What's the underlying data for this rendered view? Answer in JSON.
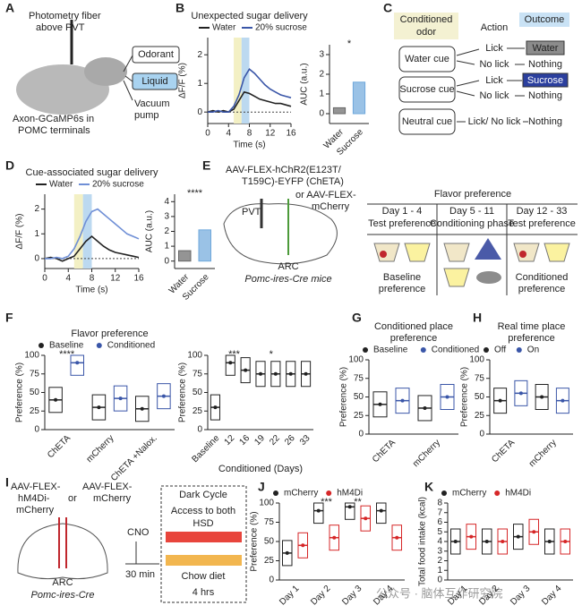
{
  "panel_labels": [
    "A",
    "B",
    "C",
    "D",
    "E",
    "F",
    "G",
    "H",
    "I",
    "J",
    "K"
  ],
  "panel_a": {
    "fiber": [
      "Photometry fiber",
      "above PVT"
    ],
    "odorant": "Odorant",
    "liquid": "Liquid",
    "pump": [
      "Vacuum",
      "pump"
    ],
    "axon": [
      "Axon-GCaMP6s in",
      "POMC terminals"
    ]
  },
  "panel_c": {
    "headers": [
      [
        "Conditioned",
        "odor"
      ],
      "Action",
      "Outcome"
    ],
    "rows": [
      {
        "cue": "Water cue",
        "actions": [
          "Lick",
          "No lick"
        ],
        "outcomes": [
          "Water",
          "Nothing"
        ]
      },
      {
        "cue": "Sucrose cue",
        "actions": [
          "Lick",
          "No lick"
        ],
        "outcomes": [
          "Sucrose",
          "Nothing"
        ]
      },
      {
        "cue": "Neutral cue",
        "actions": [
          "Lick/ No lick"
        ],
        "outcomes": [
          "Nothing"
        ]
      }
    ]
  },
  "panel_e": {
    "virus": [
      "AAV-FLEX-hChR2(E123T/",
      "T159C)-EYFP (ChETA)"
    ],
    "alt": [
      "or AAV-FLEX-",
      "mCherry"
    ],
    "pvt": "PVT",
    "arc": "ARC",
    "mice": "Pomc-ires-Cre mice",
    "table_title": "Flavor preference",
    "days": [
      "Day 1 - 4",
      "Day 5 - 11",
      "Day 12 - 33"
    ],
    "phases": [
      "Test preference",
      "Conditioning phase",
      "Test preference"
    ],
    "outcomes": [
      [
        "Baseline",
        "preference"
      ],
      [
        "Conditioned",
        "preference"
      ]
    ]
  },
  "panel_i": {
    "virus1": [
      "AAV-FLEX-",
      "hM4Di-",
      "mCherry"
    ],
    "or": "or",
    "virus2": [
      "AAV-FLEX-",
      "mCherry"
    ],
    "arc": "ARC",
    "mice": "Pomc-ires-Cre",
    "cno": "CNO",
    "wait": "30 min",
    "cycle": "Dark Cycle",
    "access": "Access to both",
    "hsd": "HSD",
    "chow": "Chow diet",
    "duration": "4 hrs"
  },
  "watermark": "公众号 · 脑体互作研究院",
  "chart_data": [
    {
      "type": "line",
      "title": [
        "Unexpected sugar delivery"
      ],
      "ylabel": "ΔF/F (%)",
      "xlabel": "Time (s)",
      "x": [
        0,
        1,
        2,
        3,
        4,
        5,
        6,
        7,
        8,
        9,
        10,
        11,
        12,
        13,
        14,
        15,
        16
      ],
      "xlim": [
        0,
        16
      ],
      "xticks": [
        0,
        4,
        8,
        12,
        16
      ],
      "ylim": [
        -0.4,
        2.6
      ],
      "yticks": [
        0,
        1,
        2
      ],
      "spans": [
        {
          "xlim": [
            5,
            6.5
          ],
          "color": "#f3f0c4"
        },
        {
          "xlim": [
            6.5,
            8
          ],
          "color": "#bcd9f0"
        }
      ],
      "series": [
        {
          "name": "Water",
          "color": "#222222",
          "values": [
            0,
            0.05,
            0,
            0.05,
            0,
            0.1,
            0.4,
            0.7,
            0.65,
            0.55,
            0.45,
            0.4,
            0.35,
            0.3,
            0.3,
            0.25,
            0.2
          ]
        },
        {
          "name": "20% sucrose",
          "color": "#3a56a8",
          "values": [
            0,
            0,
            0.05,
            0,
            0,
            0.2,
            0.6,
            1.2,
            1.5,
            1.35,
            1.15,
            0.95,
            0.8,
            0.7,
            0.6,
            0.55,
            0.5
          ]
        }
      ]
    },
    {
      "type": "bar",
      "ylabel": "AUC (a.u.)",
      "categories": [
        "Water",
        "Sucrose"
      ],
      "values": [
        0.3,
        1.6
      ],
      "colors": [
        "#666666",
        "#6fa8dc"
      ],
      "ylim": [
        -0.5,
        3.5
      ],
      "yticks": [
        0,
        1,
        2,
        3
      ],
      "sig": [
        "*"
      ]
    },
    {
      "type": "line",
      "title": [
        "Cue-associated sugar delivery"
      ],
      "ylabel": "ΔF/F (%)",
      "xlabel": "Time (s)",
      "x": [
        0,
        1,
        2,
        3,
        4,
        5,
        6,
        7,
        8,
        9,
        10,
        11,
        12,
        13,
        14,
        15,
        16
      ],
      "xlim": [
        0,
        16
      ],
      "xticks": [
        0,
        4,
        8,
        12,
        16
      ],
      "ylim": [
        -0.4,
        2.6
      ],
      "yticks": [
        0,
        1,
        2
      ],
      "spans": [
        {
          "xlim": [
            5,
            6.5
          ],
          "color": "#f3f0c4"
        },
        {
          "xlim": [
            6.5,
            8
          ],
          "color": "#bcd9f0"
        }
      ],
      "series": [
        {
          "name": "Water",
          "color": "#222222",
          "values": [
            0,
            0.05,
            0,
            -0.1,
            0,
            0.1,
            0.4,
            0.7,
            0.9,
            0.7,
            0.5,
            0.35,
            0.25,
            0.2,
            0.15,
            0.1,
            0.05
          ]
        },
        {
          "name": "20% sucrose",
          "color": "#6f8fd6",
          "values": [
            0,
            0,
            0.05,
            0,
            0.1,
            0.4,
            0.9,
            1.5,
            1.9,
            2,
            1.8,
            1.6,
            1.4,
            1.2,
            1,
            0.9,
            0.8
          ]
        }
      ]
    },
    {
      "type": "bar",
      "ylabel": "AUC (a.u.)",
      "categories": [
        "Water",
        "Sucrose"
      ],
      "values": [
        0.7,
        2.1
      ],
      "colors": [
        "#666666",
        "#6fa8dc"
      ],
      "ylim": [
        -0.5,
        4.5
      ],
      "yticks": [
        0,
        1,
        2,
        3,
        4
      ],
      "sig": [
        "****"
      ]
    },
    {
      "type": "box",
      "title": [
        "Flavor preference"
      ],
      "ylabel": "Preference (%)",
      "categories": [
        "ChETA",
        "mCherry",
        "ChETA +Nalox."
      ],
      "ylim": [
        0,
        100
      ],
      "yticks": [
        0,
        25,
        50,
        75,
        100
      ],
      "series": [
        {
          "name": "Baseline",
          "color": "#222222",
          "values": [
            40,
            30,
            28
          ]
        },
        {
          "name": "Conditioned",
          "color": "#3a56a8",
          "values": [
            90,
            42,
            45
          ]
        }
      ],
      "sig": [
        "****"
      ]
    },
    {
      "type": "box",
      "ylabel": "Preference (%)",
      "xlabel": "Conditioned (Days)",
      "categories": [
        "Baseline",
        "12",
        "16",
        "19",
        "22",
        "26",
        "33"
      ],
      "ylim": [
        0,
        100
      ],
      "yticks": [
        0,
        25,
        50,
        75,
        100
      ],
      "series": [
        {
          "color": "#222222",
          "values": [
            30,
            90,
            80,
            75,
            75,
            75,
            75
          ]
        }
      ],
      "sig": [
        "***",
        "*"
      ]
    },
    {
      "type": "box",
      "title": [
        "Conditioned place",
        "preference"
      ],
      "ylabel": "Preference (%)",
      "categories": [
        "ChETA",
        "mCherry"
      ],
      "ylim": [
        0,
        100
      ],
      "yticks": [
        0,
        25,
        50,
        75,
        100
      ],
      "series": [
        {
          "name": "Baseline",
          "color": "#222222",
          "values": [
            40,
            35
          ]
        },
        {
          "name": "Conditioned",
          "color": "#3a56a8",
          "values": [
            45,
            50
          ]
        }
      ]
    },
    {
      "type": "box",
      "title": [
        "Real time place",
        "preference"
      ],
      "ylabel": "Preference (%)",
      "categories": [
        "ChETA",
        "mCherry"
      ],
      "ylim": [
        0,
        100
      ],
      "yticks": [
        0,
        25,
        50,
        75,
        100
      ],
      "series": [
        {
          "name": "Off",
          "color": "#222222",
          "values": [
            45,
            50
          ]
        },
        {
          "name": "On",
          "color": "#3a56a8",
          "values": [
            55,
            45
          ]
        }
      ]
    },
    {
      "type": "box",
      "ylabel": "Preference (%)",
      "categories": [
        "Day 1",
        "Day 2",
        "Day 3",
        "Day 4"
      ],
      "ylim": [
        0,
        100
      ],
      "yticks": [
        0,
        25,
        50,
        75,
        100
      ],
      "series": [
        {
          "name": "mCherry",
          "color": "#222222",
          "values": [
            35,
            90,
            95,
            90
          ]
        },
        {
          "name": "hM4Di",
          "color": "#d62728",
          "values": [
            45,
            55,
            80,
            55
          ]
        }
      ],
      "sig": [
        "***",
        "**"
      ]
    },
    {
      "type": "box",
      "ylabel": "Total food intake (kcal)",
      "categories": [
        "Day 1",
        "Day 2",
        "Day 3",
        "Day 4"
      ],
      "ylim": [
        0,
        8
      ],
      "yticks": [
        0,
        1,
        2,
        3,
        4,
        5,
        6,
        7,
        8
      ],
      "series": [
        {
          "name": "mCherry",
          "color": "#222222",
          "values": [
            4,
            4,
            4.5,
            4
          ]
        },
        {
          "name": "hM4Di",
          "color": "#d62728",
          "values": [
            4.5,
            4,
            5,
            4
          ]
        }
      ]
    }
  ]
}
